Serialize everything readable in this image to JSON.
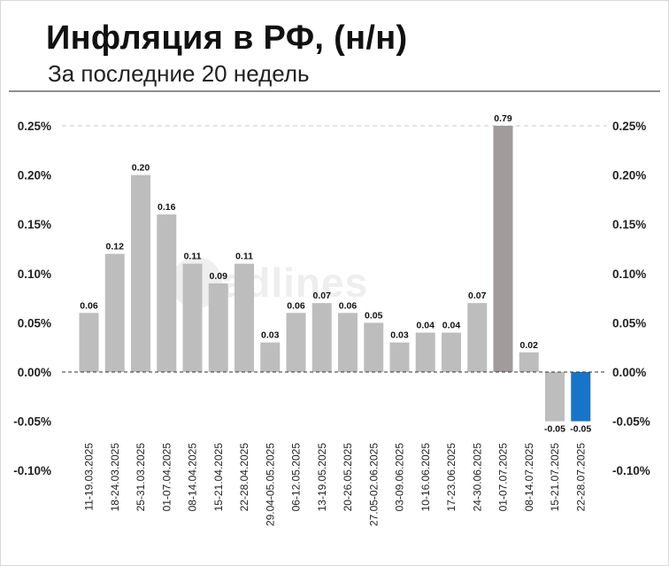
{
  "header": {
    "title": "Инфляция в РФ, (н/н)",
    "subtitle": "За последние 20 недель"
  },
  "watermark": "headlines",
  "colors": {
    "bar": "#bdbdbd",
    "highlight_bar": "#a19b9b",
    "last_bar": "#1874c8"
  },
  "chart_data": {
    "type": "bar",
    "title": "Инфляция в РФ, (н/н)",
    "subtitle": "За последние 20 недель",
    "categories": [
      "11-19.03.2025",
      "18-24.03.2025",
      "25-31.03.2025",
      "01-07.04.2025",
      "08-14.04.2025",
      "15-21.04.2025",
      "22-28.04.2025",
      "29.04-05.05.2025",
      "06-12.05.2025",
      "13-19.05.2025",
      "20-26.05.2025",
      "27.05-02.06.2025",
      "03-09.06.2025",
      "10-16.06.2025",
      "17-23.06.2025",
      "24-30.06.2025",
      "01-07.07.2025",
      "08-14.07.2025",
      "15-21.07.2025",
      "22-28.07.2025"
    ],
    "values": [
      0.06,
      0.12,
      0.2,
      0.16,
      0.11,
      0.09,
      0.11,
      0.03,
      0.06,
      0.07,
      0.06,
      0.05,
      0.03,
      0.04,
      0.04,
      0.07,
      0.79,
      0.02,
      -0.05,
      -0.05
    ],
    "data_labels": [
      "0.06",
      "0.12",
      "0.20",
      "0.16",
      "0.11",
      "0.09",
      "0.11",
      "0.03",
      "0.06",
      "0.07",
      "0.06",
      "0.05",
      "0.03",
      "0.04",
      "0.04",
      "0.07",
      "0.79",
      "0.02",
      "-0.05",
      "-0.05"
    ],
    "ylim": [
      -0.1,
      0.25
    ],
    "yticks": [
      0.25,
      0.2,
      0.15,
      0.1,
      0.05,
      0.0,
      -0.05,
      -0.1
    ],
    "ytick_labels": [
      "0.25%",
      "0.20%",
      "0.15%",
      "0.10%",
      "0.05%",
      "0.00%",
      "-0.05%",
      "-0.10%"
    ],
    "axes": "left and right",
    "clipped_bar": "01-07.07.2025",
    "highlighted": [
      "01-07.07.2025",
      "22-28.07.2025"
    ],
    "reference_lines": [
      "dashed at 0.25%",
      "dashed at 0.00%"
    ],
    "xlabel": "",
    "ylabel": ""
  }
}
